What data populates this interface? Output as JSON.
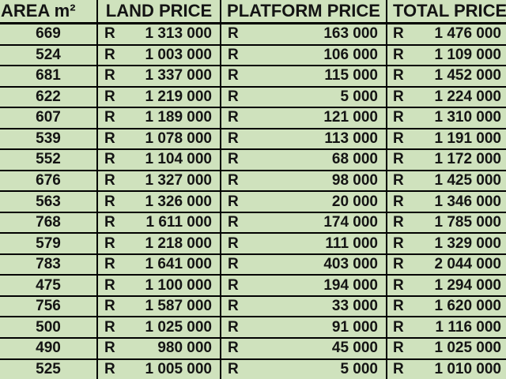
{
  "table": {
    "currency_symbol": "R",
    "columns": [
      {
        "label": "AREA m²"
      },
      {
        "label": "LAND PRICE"
      },
      {
        "label": "PLATFORM PRICE"
      },
      {
        "label": "TOTAL PRICE"
      }
    ],
    "rows": [
      [
        "669",
        "1 313 000",
        "163 000",
        "1 476 000"
      ],
      [
        "524",
        "1 003 000",
        "106 000",
        "1 109 000"
      ],
      [
        "681",
        "1 337 000",
        "115 000",
        "1 452 000"
      ],
      [
        "622",
        "1 219 000",
        "5 000",
        "1 224 000"
      ],
      [
        "607",
        "1 189 000",
        "121 000",
        "1 310 000"
      ],
      [
        "539",
        "1 078 000",
        "113 000",
        "1 191 000"
      ],
      [
        "552",
        "1 104 000",
        "68 000",
        "1 172 000"
      ],
      [
        "676",
        "1 327 000",
        "98 000",
        "1 425 000"
      ],
      [
        "563",
        "1 326 000",
        "20 000",
        "1 346 000"
      ],
      [
        "768",
        "1 611 000",
        "174 000",
        "1 785 000"
      ],
      [
        "579",
        "1 218 000",
        "111 000",
        "1 329 000"
      ],
      [
        "783",
        "1 641 000",
        "403 000",
        "2 044 000"
      ],
      [
        "475",
        "1 100 000",
        "194 000",
        "1 294 000"
      ],
      [
        "756",
        "1 587 000",
        "33 000",
        "1 620 000"
      ],
      [
        "500",
        "1 025 000",
        "91 000",
        "1 116 000"
      ],
      [
        "490",
        "980 000",
        "45 000",
        "1 025 000"
      ],
      [
        "525",
        "1 005 000",
        "5 000",
        "1 010 000"
      ]
    ]
  },
  "colors": {
    "cell_bg": "#cfe2bd",
    "grid": "#000000",
    "text": "#141414"
  }
}
